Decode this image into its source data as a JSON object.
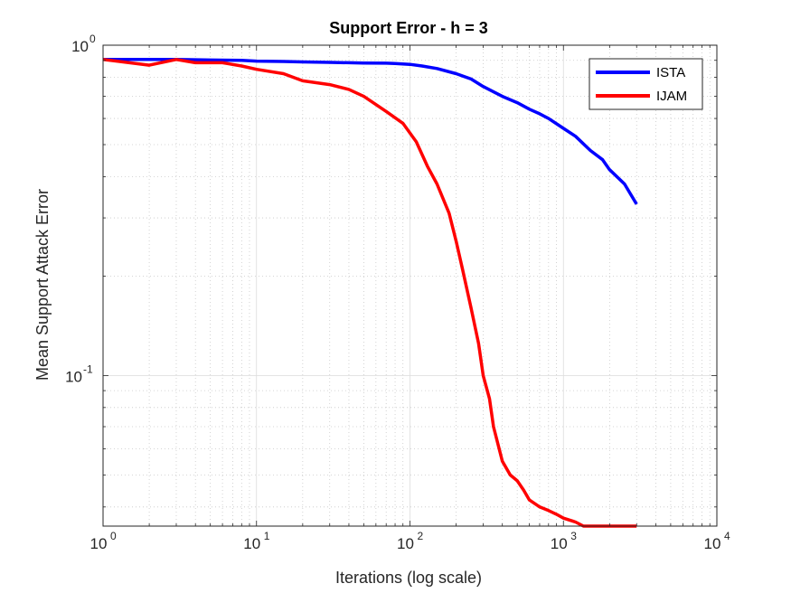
{
  "chart_data": {
    "type": "line",
    "title": "Support Error - h = 3",
    "xlabel": "Iterations (log scale)",
    "ylabel": "Mean Support Attack Error",
    "xscale": "log",
    "yscale": "log",
    "xlim": [
      1,
      10000
    ],
    "ylim": [
      0.035,
      1
    ],
    "x_ticks": [
      {
        "base": "10",
        "exp": "0"
      },
      {
        "base": "10",
        "exp": "1"
      },
      {
        "base": "10",
        "exp": "2"
      },
      {
        "base": "10",
        "exp": "3"
      },
      {
        "base": "10",
        "exp": "4"
      }
    ],
    "y_ticks": [
      {
        "base": "10",
        "exp": "-1"
      },
      {
        "base": "10",
        "exp": "0"
      }
    ],
    "grid": true,
    "legend_position": "top-right",
    "series": [
      {
        "name": "ISTA",
        "color": "#0000ff",
        "x": [
          1,
          2,
          3,
          5,
          8,
          10,
          15,
          20,
          30,
          50,
          70,
          80,
          100,
          120,
          150,
          200,
          250,
          300,
          400,
          500,
          600,
          700,
          800,
          1000,
          1200,
          1500,
          1800,
          2000,
          2500,
          3000
        ],
        "y": [
          0.905,
          0.905,
          0.905,
          0.902,
          0.9,
          0.895,
          0.893,
          0.89,
          0.887,
          0.883,
          0.882,
          0.88,
          0.875,
          0.865,
          0.85,
          0.82,
          0.79,
          0.75,
          0.7,
          0.67,
          0.64,
          0.62,
          0.6,
          0.56,
          0.53,
          0.48,
          0.45,
          0.42,
          0.38,
          0.33
        ]
      },
      {
        "name": "IJAM",
        "color": "#ff0000",
        "x": [
          1,
          2,
          3,
          4,
          6,
          8,
          10,
          15,
          20,
          30,
          40,
          50,
          70,
          90,
          110,
          130,
          150,
          180,
          200,
          220,
          250,
          280,
          300,
          330,
          350,
          400,
          450,
          500,
          550,
          600,
          700,
          800,
          900,
          1000,
          1200,
          1350,
          1500,
          2000,
          2500,
          3000
        ],
        "y": [
          0.905,
          0.87,
          0.905,
          0.885,
          0.885,
          0.865,
          0.845,
          0.82,
          0.78,
          0.76,
          0.735,
          0.7,
          0.63,
          0.58,
          0.51,
          0.43,
          0.38,
          0.31,
          0.255,
          0.21,
          0.16,
          0.125,
          0.1,
          0.085,
          0.07,
          0.055,
          0.05,
          0.048,
          0.045,
          0.042,
          0.04,
          0.039,
          0.038,
          0.037,
          0.036,
          0.035,
          0.035,
          0.035,
          0.035,
          0.035
        ]
      }
    ]
  }
}
